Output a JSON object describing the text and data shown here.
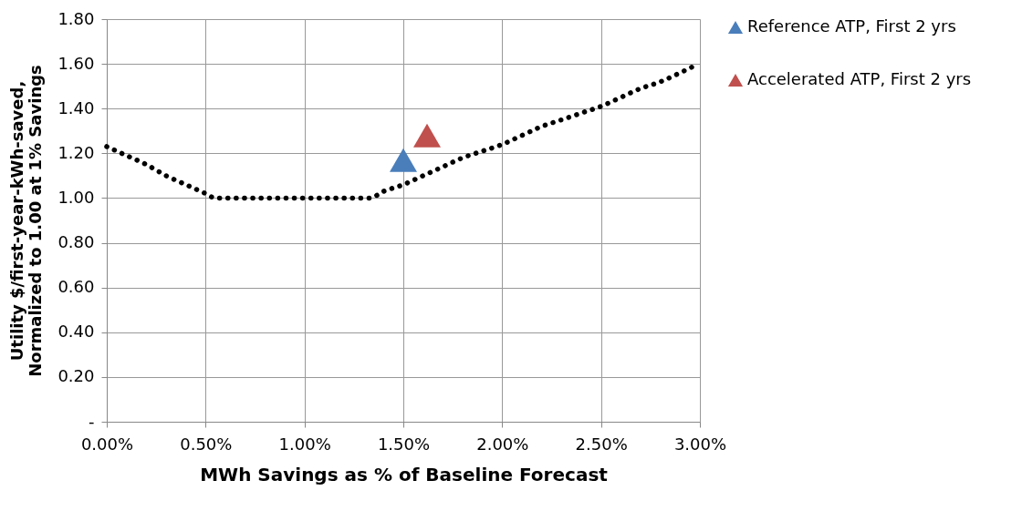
{
  "chart_data": {
    "type": "scatter",
    "xlabel": "MWh Savings as % of Baseline Forecast",
    "ylabel": "Utility $/first-year-kWh-saved,\nNormalized to 1.00 at 1% Savings",
    "series": [
      {
        "type": "line",
        "color": "#000000",
        "line_style": "dotted",
        "marker": "none",
        "x": [
          0,
          0.001,
          0.002,
          0.003,
          0.004,
          0.005,
          0.0055,
          0.007,
          0.009,
          0.011,
          0.013,
          0.0133,
          0.014,
          0.015,
          0.016,
          0.017,
          0.018,
          0.019,
          0.02,
          0.021,
          0.022,
          0.023,
          0.024,
          0.025,
          0.026,
          0.027,
          0.028,
          0.029,
          0.0297
        ],
        "values": [
          1.23,
          1.19,
          1.15,
          1.1,
          1.06,
          1.02,
          1.0,
          1.0,
          1.0,
          1.0,
          1.0,
          1.0,
          1.03,
          1.06,
          1.1,
          1.14,
          1.18,
          1.21,
          1.24,
          1.28,
          1.32,
          1.35,
          1.38,
          1.41,
          1.45,
          1.49,
          1.52,
          1.56,
          1.59
        ]
      },
      {
        "name": "Reference ATP, First 2 yrs",
        "color": "#4a7ebb",
        "marker": "triangle",
        "x": [
          0.015
        ],
        "values": [
          1.17
        ]
      },
      {
        "name": "Accelerated ATP, First 2 yrs",
        "color": "#c0504d",
        "marker": "triangle",
        "x": [
          0.0162
        ],
        "values": [
          1.28
        ]
      }
    ],
    "xlim": [
      0,
      0.03
    ],
    "xticks": [
      {
        "value": 0,
        "label": "0.00%"
      },
      {
        "value": 0.005,
        "label": "0.50%"
      },
      {
        "value": 0.01,
        "label": "1.00%"
      },
      {
        "value": 0.015,
        "label": "1.50%"
      },
      {
        "value": 0.02,
        "label": "2.00%"
      },
      {
        "value": 0.025,
        "label": "2.50%"
      },
      {
        "value": 0.03,
        "label": "3.00%"
      }
    ],
    "ylim": [
      0,
      1.8
    ],
    "yticks": [
      {
        "value": 0,
        "label": "-"
      },
      {
        "value": 0.2,
        "label": "0.20"
      },
      {
        "value": 0.4,
        "label": "0.40"
      },
      {
        "value": 0.6,
        "label": "0.60"
      },
      {
        "value": 0.8,
        "label": "0.80"
      },
      {
        "value": 1.0,
        "label": "1.00"
      },
      {
        "value": 1.2,
        "label": "1.20"
      },
      {
        "value": 1.4,
        "label": "1.40"
      },
      {
        "value": 1.6,
        "label": "1.60"
      },
      {
        "value": 1.8,
        "label": "1.80"
      }
    ],
    "grid": true,
    "legend": "right"
  }
}
